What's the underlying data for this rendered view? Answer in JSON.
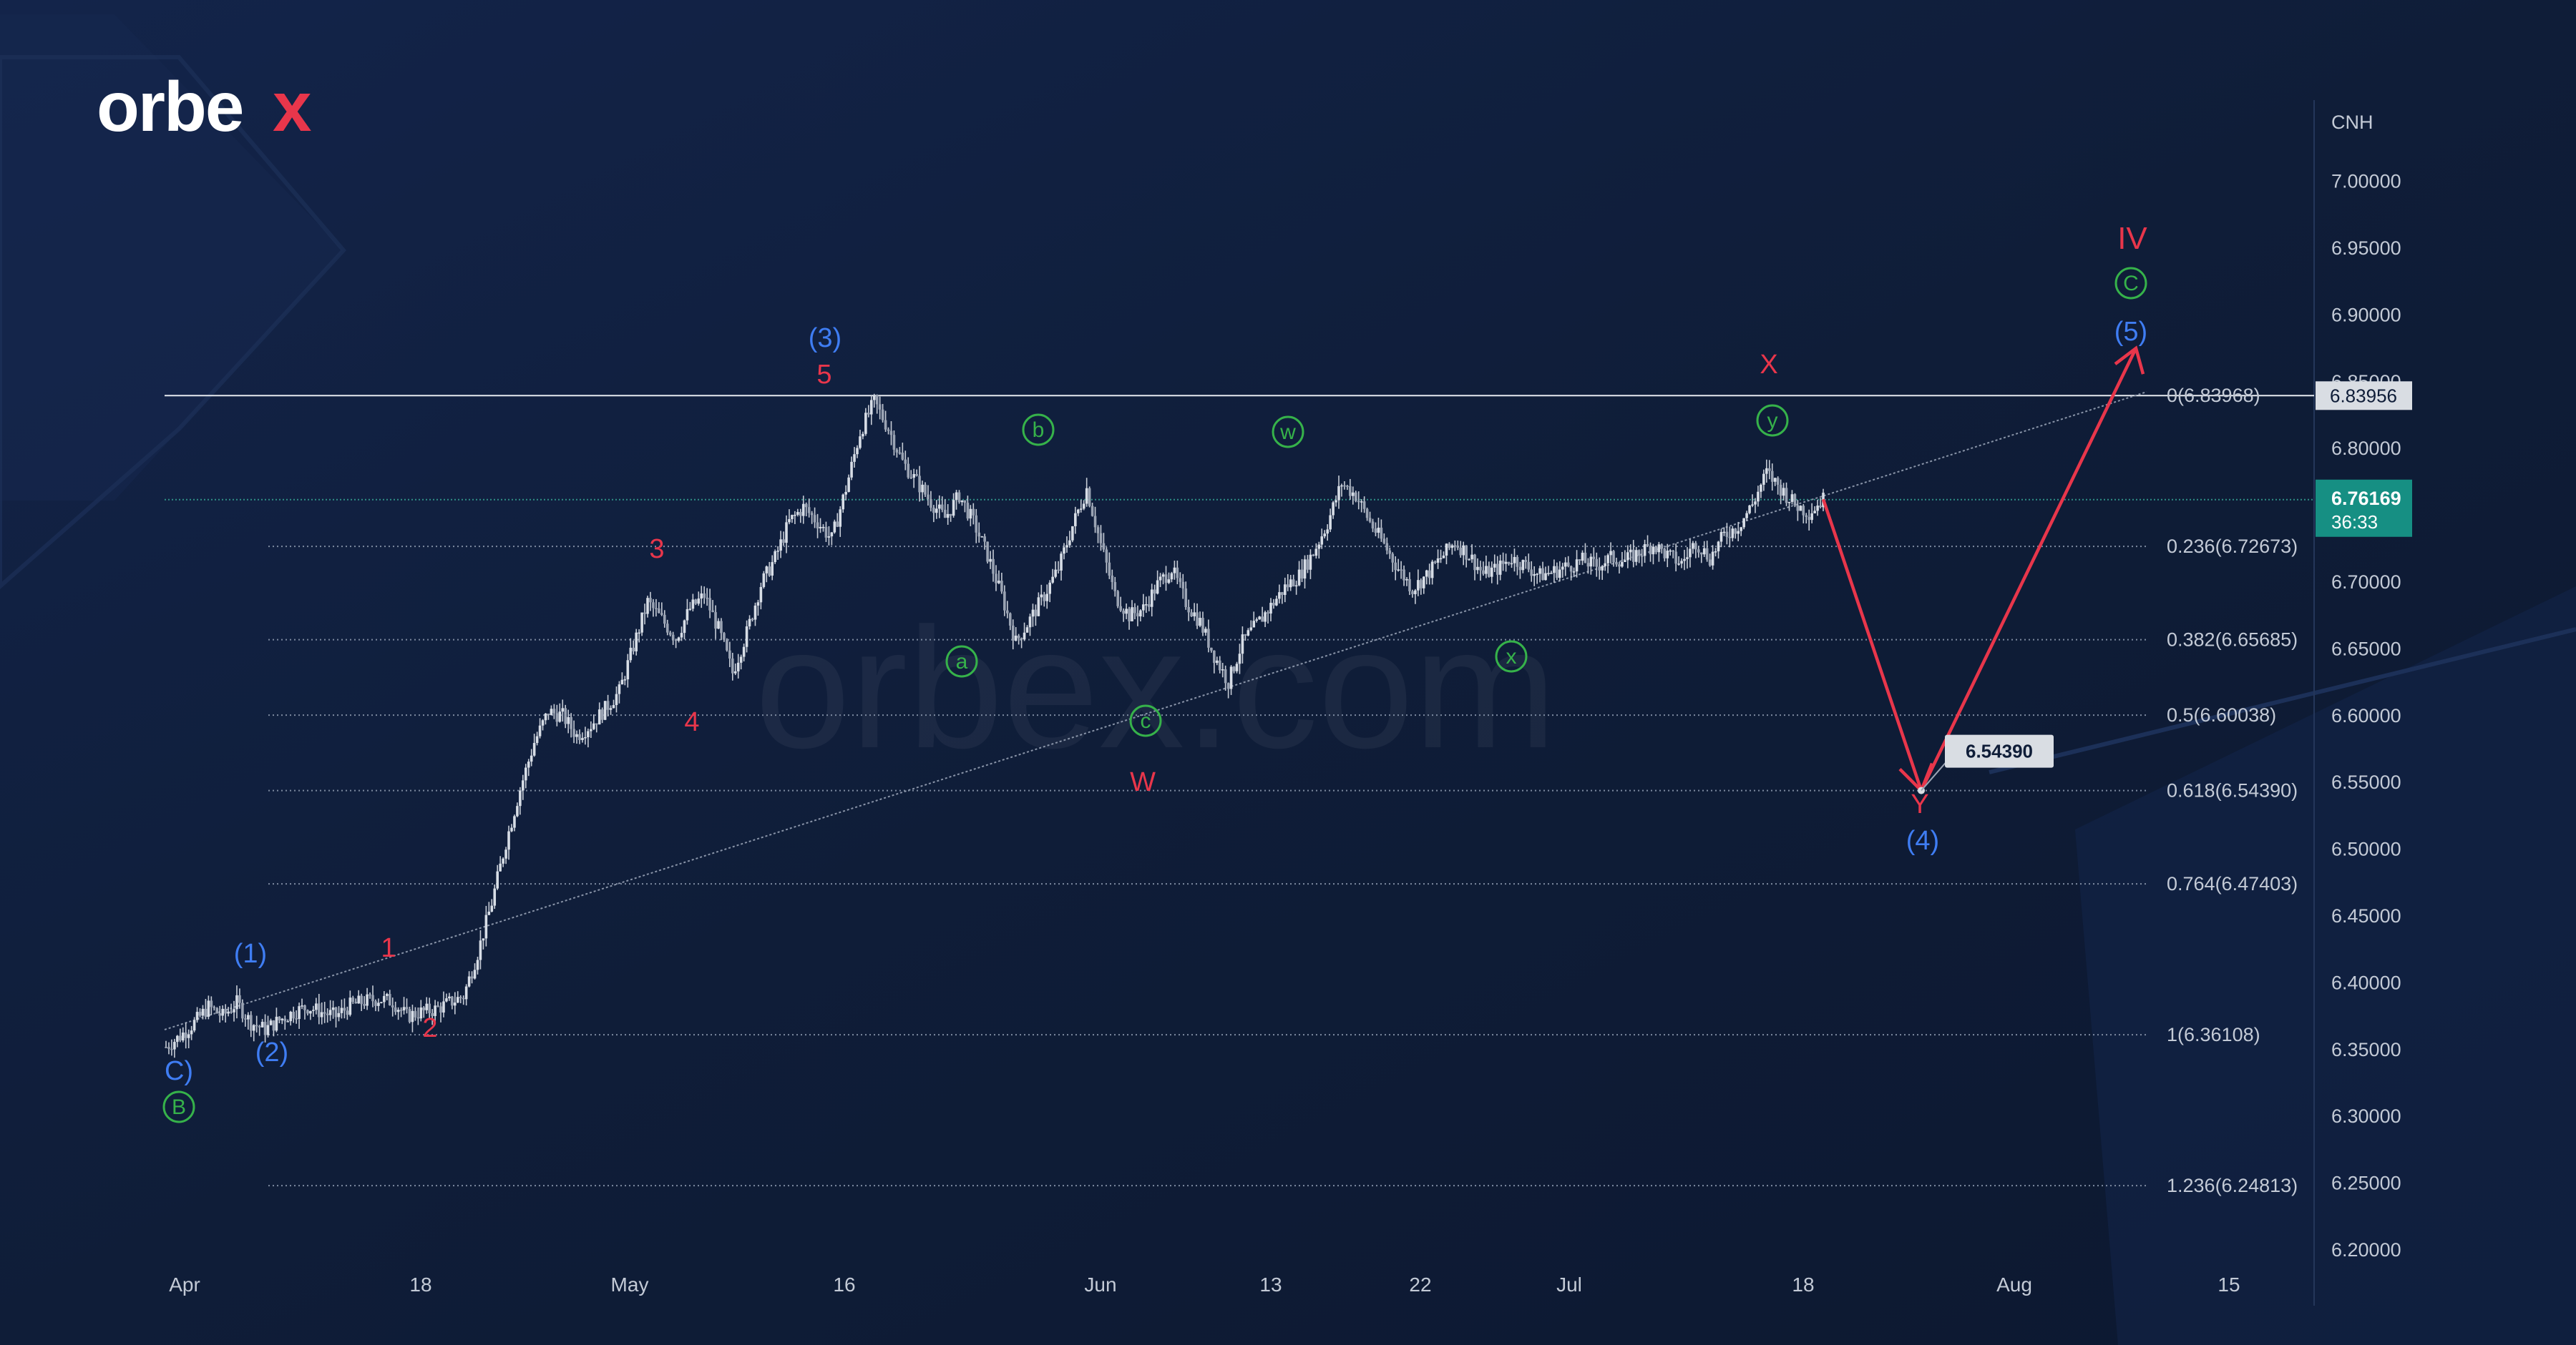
{
  "brand": {
    "logo_text": "orbex",
    "watermark_text": "orbex.com"
  },
  "colors": {
    "background": "#0f1d38",
    "axis_text": "#c3cad6",
    "grid_dotted": "#7d8aa0",
    "candle": "#c6ccd6",
    "wave_red": "#e8364b",
    "wave_blue": "#3f7df3",
    "wave_green": "#36b24a",
    "last_price_bg": "#168f83",
    "flag_bg": "#d9dde3",
    "flag_text": "#0f1d38"
  },
  "price_axis": {
    "currency": "CNH"
  },
  "chart_data": {
    "type": "candlestick",
    "symbol_currency": "CNH",
    "x_axis_ticks": [
      "Apr",
      "18",
      "May",
      "16",
      "Jun",
      "13",
      "22",
      "Jul",
      "18",
      "Aug",
      "15"
    ],
    "y_axis_ticks": [
      "7.00000",
      "6.95000",
      "6.90000",
      "6.85000",
      "6.80000",
      "6.75000",
      "6.70000",
      "6.65000",
      "6.60000",
      "6.55000",
      "6.50000",
      "6.45000",
      "6.40000",
      "6.35000",
      "6.30000",
      "6.25000",
      "6.20000"
    ],
    "ylim": [
      6.18,
      7.04
    ],
    "horizontal_line": 6.83956,
    "fibonacci_levels": [
      {
        "label": "0(6.83968)",
        "value": 6.83968
      },
      {
        "label": "0.236(6.72673)",
        "value": 6.72673
      },
      {
        "label": "0.382(6.65685)",
        "value": 6.65685
      },
      {
        "label": "0.5(6.60038)",
        "value": 6.60038
      },
      {
        "label": "0.618(6.54390)",
        "value": 6.5439
      },
      {
        "label": "0.764(6.47403)",
        "value": 6.47403
      },
      {
        "label": "1(6.36108)",
        "value": 6.36108
      },
      {
        "label": "1.236(6.24813)",
        "value": 6.24813
      }
    ],
    "price_flags": [
      {
        "label": "6.83956",
        "value": 6.83956
      },
      {
        "label": "6.76169",
        "sub": "36:33",
        "value": 6.76169
      }
    ],
    "target_callout": {
      "label": "6.54390",
      "value": 6.5439
    },
    "wave_labels": [
      {
        "text": "C)",
        "color": "blue"
      },
      {
        "text": "B",
        "color": "green",
        "circled": true
      },
      {
        "text": "(1)",
        "color": "blue"
      },
      {
        "text": "(2)",
        "color": "blue"
      },
      {
        "text": "1",
        "color": "red"
      },
      {
        "text": "2",
        "color": "red"
      },
      {
        "text": "3",
        "color": "red"
      },
      {
        "text": "4",
        "color": "red"
      },
      {
        "text": "5",
        "color": "red"
      },
      {
        "text": "(3)",
        "color": "blue"
      },
      {
        "text": "a",
        "color": "green",
        "circled": true
      },
      {
        "text": "b",
        "color": "green",
        "circled": true
      },
      {
        "text": "c",
        "color": "green",
        "circled": true
      },
      {
        "text": "W",
        "color": "red"
      },
      {
        "text": "w",
        "color": "green",
        "circled": true
      },
      {
        "text": "x",
        "color": "green",
        "circled": true
      },
      {
        "text": "y",
        "color": "green",
        "circled": true
      },
      {
        "text": "X",
        "color": "red"
      },
      {
        "text": "Y",
        "color": "red"
      },
      {
        "text": "(4)",
        "color": "blue"
      },
      {
        "text": "(5)",
        "color": "blue"
      },
      {
        "text": "C",
        "color": "green",
        "circled": true
      },
      {
        "text": "IV",
        "color": "red"
      }
    ],
    "price_path": [
      6.352,
      6.36,
      6.37,
      6.382,
      6.375,
      6.385,
      6.37,
      6.365,
      6.372,
      6.378,
      6.382,
      6.378,
      6.375,
      6.383,
      6.386,
      6.388,
      6.386,
      6.375,
      6.378,
      6.38,
      6.385,
      6.39,
      6.422,
      6.46,
      6.505,
      6.545,
      6.58,
      6.603,
      6.6,
      6.585,
      6.593,
      6.605,
      6.618,
      6.652,
      6.685,
      6.672,
      6.658,
      6.68,
      6.69,
      6.665,
      6.632,
      6.662,
      6.698,
      6.718,
      6.745,
      6.756,
      6.745,
      6.732,
      6.77,
      6.812,
      6.835,
      6.815,
      6.79,
      6.775,
      6.76,
      6.748,
      6.765,
      6.745,
      6.72,
      6.69,
      6.655,
      6.672,
      6.69,
      6.71,
      6.742,
      6.77,
      6.728,
      6.69,
      6.675,
      6.68,
      6.698,
      6.71,
      6.685,
      6.67,
      6.645,
      6.625,
      6.655,
      6.668,
      6.682,
      6.696,
      6.705,
      6.722,
      6.744,
      6.774,
      6.765,
      6.745,
      6.728,
      6.71,
      6.695,
      6.705,
      6.718,
      6.73,
      6.72,
      6.706,
      6.71,
      6.718,
      6.712,
      6.705,
      6.708,
      6.712,
      6.716,
      6.712,
      6.718,
      6.716,
      6.722,
      6.728,
      6.72,
      6.714,
      6.73,
      6.718,
      6.735,
      6.742,
      6.758,
      6.782,
      6.77,
      6.758,
      6.752,
      6.762
    ],
    "forecast_path": [
      {
        "value": 6.762
      },
      {
        "value": 6.5439
      },
      {
        "value": 6.875
      }
    ]
  }
}
